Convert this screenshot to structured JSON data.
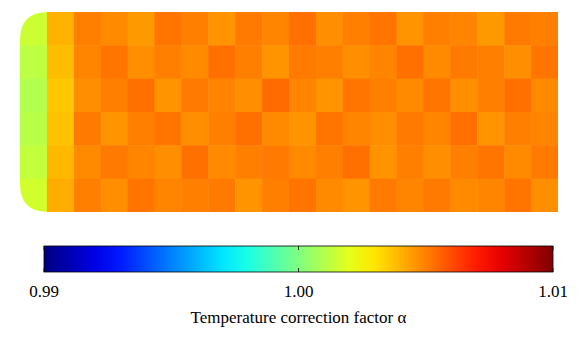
{
  "chart_data": {
    "type": "heatmap",
    "title": "Temperature correction factor α",
    "tick_labels": false,
    "cells": [
      [
        1.0015,
        1.004,
        1.005,
        1.0048,
        1.0045,
        1.0052,
        1.005,
        1.0046,
        1.0051,
        1.0049,
        1.0053,
        1.0047,
        1.005,
        1.0052,
        1.0046,
        1.005,
        1.0049,
        1.0045,
        1.0051,
        1.005
      ],
      [
        1.0012,
        1.0038,
        1.0049,
        1.0052,
        1.0047,
        1.005,
        1.0048,
        1.0053,
        1.005,
        1.0046,
        1.0051,
        1.005,
        1.0047,
        1.0049,
        1.0053,
        1.0048,
        1.0051,
        1.005,
        1.0047,
        1.0052
      ],
      [
        1.001,
        1.0036,
        1.0047,
        1.005,
        1.0053,
        1.0046,
        1.0051,
        1.0049,
        1.0047,
        1.0054,
        1.0049,
        1.0046,
        1.0052,
        1.005,
        1.0048,
        1.0052,
        1.0047,
        1.005,
        1.0053,
        1.0048
      ],
      [
        1.0011,
        1.0037,
        1.0051,
        1.0046,
        1.005,
        1.0052,
        1.0047,
        1.005,
        1.0053,
        1.0048,
        1.0046,
        1.0052,
        1.0049,
        1.0047,
        1.0051,
        1.0049,
        1.0053,
        1.0046,
        1.005,
        1.0049
      ],
      [
        1.0013,
        1.0039,
        1.0048,
        1.0051,
        1.0049,
        1.0047,
        1.0053,
        1.0048,
        1.005,
        1.0051,
        1.0048,
        1.005,
        1.0053,
        1.0046,
        1.005,
        1.0047,
        1.005,
        1.0052,
        1.0048,
        1.0051
      ],
      [
        1.0016,
        1.0041,
        1.005,
        1.0047,
        1.0052,
        1.0049,
        1.005,
        1.0051,
        1.0046,
        1.005,
        1.0052,
        1.0048,
        1.0046,
        1.0051,
        1.0049,
        1.0051,
        1.0048,
        1.0049,
        1.0052,
        1.0047
      ]
    ],
    "color_range": [
      0.99,
      1.01
    ],
    "color_ticks": [
      0.99,
      {
        "value": 1,
        "label": "1.00"
      },
      1.01
    ]
  }
}
